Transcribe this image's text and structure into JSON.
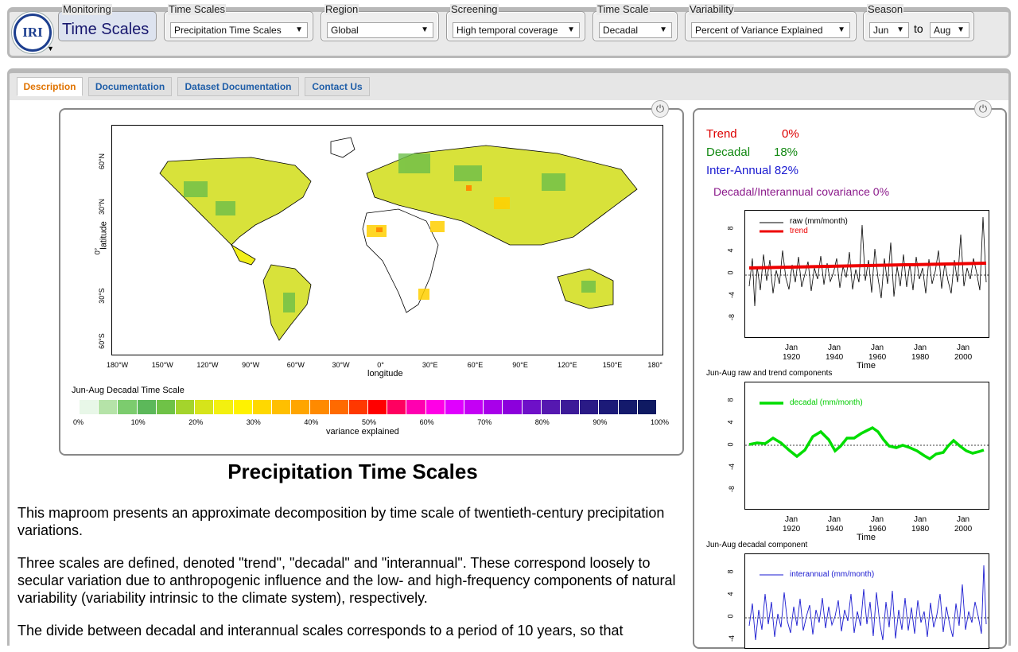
{
  "header": {
    "logo_text": "IRI",
    "monitoring": {
      "legend": "Monitoring",
      "title": "Time Scales"
    },
    "controls": [
      {
        "legend": "Time Scales",
        "value": "Precipitation Time Scales"
      },
      {
        "legend": "Region",
        "value": "Global"
      },
      {
        "legend": "Screening",
        "value": "High temporal coverage"
      },
      {
        "legend": "Time Scale",
        "value": "Decadal"
      },
      {
        "legend": "Variability",
        "value": "Percent of Variance Explained"
      }
    ],
    "season": {
      "legend": "Season",
      "from": "Jun",
      "to_label": "to",
      "to": "Aug"
    }
  },
  "tabs": [
    {
      "label": "Description",
      "active": true
    },
    {
      "label": "Documentation"
    },
    {
      "label": "Dataset Documentation"
    },
    {
      "label": "Contact Us"
    }
  ],
  "map": {
    "ylabel": "latitude",
    "xlabel": "longitude",
    "lat_ticks": [
      "60°N",
      "30°N",
      "0°",
      "30°S",
      "60°S"
    ],
    "lon_ticks": [
      "180°W",
      "150°W",
      "120°W",
      "90°W",
      "60°W",
      "30°W",
      "0°",
      "30°E",
      "60°E",
      "90°E",
      "120°E",
      "150°E",
      "180°"
    ],
    "colorbar_title": "Jun-Aug Decadal Time Scale",
    "colorbar_ticks": [
      "0%",
      "10%",
      "20%",
      "30%",
      "40%",
      "50%",
      "60%",
      "70%",
      "80%",
      "90%",
      "100%"
    ],
    "colorbar_label": "variance explained",
    "colorbar_colors": [
      "#e8f7e8",
      "#b5e3a8",
      "#7ccc6e",
      "#5cb85a",
      "#6fc247",
      "#a4d42c",
      "#d6e41a",
      "#f3f00f",
      "#fff200",
      "#ffd800",
      "#ffbf00",
      "#ffa500",
      "#ff8a00",
      "#ff6a00",
      "#ff3800",
      "#ff0000",
      "#ff0060",
      "#ff00b0",
      "#ff00e6",
      "#e000ff",
      "#c400f5",
      "#a800ea",
      "#8c00dc",
      "#6e10c8",
      "#5518b0",
      "#3c1a98",
      "#2a1a86",
      "#1c1a78",
      "#141a6c",
      "#0f1a62"
    ]
  },
  "stats": {
    "trend_label": "Trend",
    "trend_value": "0%",
    "decadal_label": "Decadal",
    "decadal_value": "18%",
    "interannual_label": "Inter-Annual",
    "interannual_value": "82%",
    "covariance": "Decadal/Interannual covariance 0%"
  },
  "plots": {
    "xaxis_label": "Time",
    "x_ticks_top": [
      "Jan",
      "Jan",
      "Jan",
      "Jan",
      "Jan"
    ],
    "x_ticks_bottom": [
      "1920",
      "1940",
      "1960",
      "1980",
      "2000"
    ],
    "y_ticks": [
      "8",
      "4",
      "0",
      "-4",
      "-8"
    ],
    "p1": {
      "legend_raw": "raw (mm/month)",
      "legend_trend": "trend",
      "caption": "Jun-Aug  raw and trend components"
    },
    "p2": {
      "legend": "decadal (mm/month)",
      "caption": "Jun-Aug decadal component"
    },
    "p3": {
      "legend": "interannual (mm/month)"
    }
  },
  "description": {
    "heading": "Precipitation Time Scales",
    "paragraphs": [
      "This maproom presents an approximate decomposition by time scale of twentieth-century precipitation variations.",
      "Three scales are defined, denoted \"trend\", \"decadal\" and \"interannual\". These correspond loosely to secular variation due to anthropogenic influence and the low- and high-frequency components of natural variability (variability intrinsic to the climate system), respectively.",
      "The divide between decadal and interannual scales corresponds to a period of 10 years, so that"
    ]
  },
  "colors": {
    "trend": "#dd0000",
    "decadal": "#118811",
    "interannual": "#1a1ad0",
    "covariance": "#8b1a8b",
    "link": "#1f5ea8",
    "active_tab": "#e07300"
  }
}
